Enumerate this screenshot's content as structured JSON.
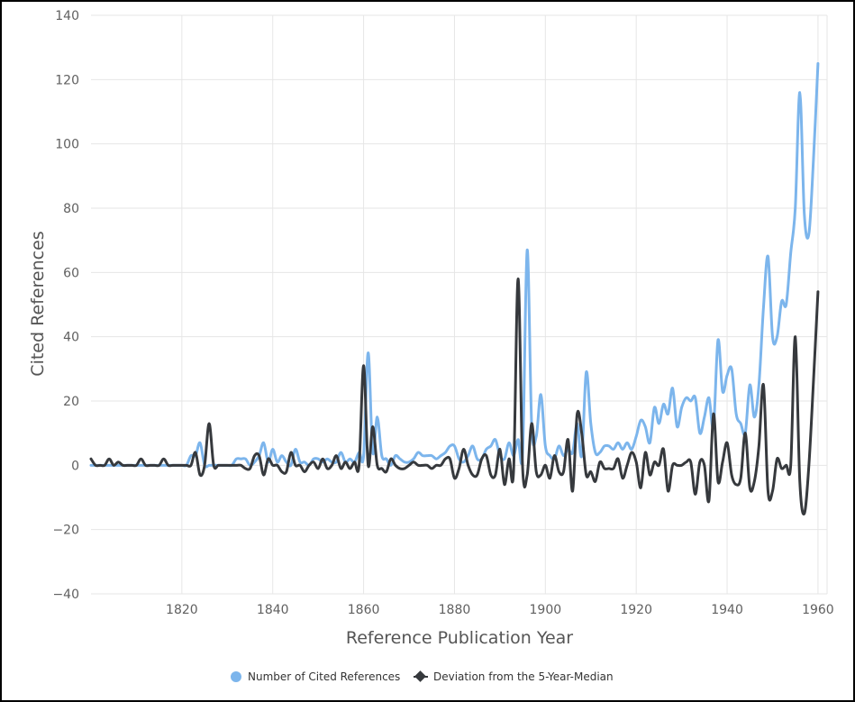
{
  "chart_data": {
    "type": "line",
    "xlabel": "Reference Publication Year",
    "ylabel": "Cited References",
    "xlim": [
      1800,
      1962
    ],
    "ylim": [
      -40,
      140
    ],
    "x_ticks": [
      1820,
      1840,
      1860,
      1880,
      1900,
      1920,
      1940,
      1960
    ],
    "y_ticks": [
      -40,
      -20,
      0,
      20,
      40,
      60,
      80,
      100,
      120,
      140
    ],
    "grid": true,
    "legend_position": "bottom-center",
    "colors": {
      "series_1": "#7cb5ec",
      "series_2": "#36393d",
      "grid": "#e6e6e6"
    },
    "series": [
      {
        "name": "Number of Cited References",
        "marker": "circle",
        "points": [
          [
            1800,
            0
          ],
          [
            1801,
            0
          ],
          [
            1802,
            0
          ],
          [
            1803,
            0
          ],
          [
            1804,
            0
          ],
          [
            1805,
            0
          ],
          [
            1806,
            0
          ],
          [
            1807,
            0
          ],
          [
            1808,
            0
          ],
          [
            1809,
            0
          ],
          [
            1810,
            0
          ],
          [
            1811,
            0
          ],
          [
            1812,
            0
          ],
          [
            1813,
            0
          ],
          [
            1814,
            0
          ],
          [
            1815,
            0
          ],
          [
            1816,
            0
          ],
          [
            1817,
            0
          ],
          [
            1818,
            0
          ],
          [
            1819,
            0
          ],
          [
            1820,
            0
          ],
          [
            1821,
            0
          ],
          [
            1822,
            3
          ],
          [
            1823,
            3
          ],
          [
            1824,
            7
          ],
          [
            1825,
            0
          ],
          [
            1826,
            0
          ],
          [
            1827,
            0
          ],
          [
            1828,
            0
          ],
          [
            1829,
            0
          ],
          [
            1830,
            0
          ],
          [
            1831,
            0
          ],
          [
            1832,
            2
          ],
          [
            1833,
            2
          ],
          [
            1834,
            2
          ],
          [
            1835,
            0
          ],
          [
            1836,
            1
          ],
          [
            1837,
            3
          ],
          [
            1838,
            7
          ],
          [
            1839,
            1
          ],
          [
            1840,
            5
          ],
          [
            1841,
            1
          ],
          [
            1842,
            3
          ],
          [
            1843,
            1
          ],
          [
            1844,
            0
          ],
          [
            1845,
            5
          ],
          [
            1846,
            1
          ],
          [
            1847,
            1
          ],
          [
            1848,
            0
          ],
          [
            1849,
            2
          ],
          [
            1850,
            2
          ],
          [
            1851,
            1
          ],
          [
            1852,
            2
          ],
          [
            1853,
            1
          ],
          [
            1854,
            1
          ],
          [
            1855,
            4
          ],
          [
            1856,
            1
          ],
          [
            1857,
            2
          ],
          [
            1858,
            1
          ],
          [
            1859,
            4
          ],
          [
            1860,
            3
          ],
          [
            1861,
            35
          ],
          [
            1862,
            4
          ],
          [
            1863,
            15
          ],
          [
            1864,
            3
          ],
          [
            1865,
            2
          ],
          [
            1866,
            0
          ],
          [
            1867,
            3
          ],
          [
            1868,
            2
          ],
          [
            1869,
            1
          ],
          [
            1870,
            1
          ],
          [
            1871,
            2
          ],
          [
            1872,
            4
          ],
          [
            1873,
            3
          ],
          [
            1874,
            3
          ],
          [
            1875,
            3
          ],
          [
            1876,
            2
          ],
          [
            1877,
            3
          ],
          [
            1878,
            4
          ],
          [
            1879,
            6
          ],
          [
            1880,
            6
          ],
          [
            1881,
            2
          ],
          [
            1882,
            1
          ],
          [
            1883,
            3
          ],
          [
            1884,
            6
          ],
          [
            1885,
            2
          ],
          [
            1886,
            2
          ],
          [
            1887,
            5
          ],
          [
            1888,
            6
          ],
          [
            1889,
            8
          ],
          [
            1890,
            3
          ],
          [
            1891,
            2
          ],
          [
            1892,
            7
          ],
          [
            1893,
            3
          ],
          [
            1894,
            8
          ],
          [
            1895,
            4
          ],
          [
            1896,
            67
          ],
          [
            1897,
            12
          ],
          [
            1898,
            9
          ],
          [
            1899,
            22
          ],
          [
            1900,
            6
          ],
          [
            1901,
            3
          ],
          [
            1902,
            2
          ],
          [
            1903,
            6
          ],
          [
            1904,
            3
          ],
          [
            1905,
            5
          ],
          [
            1906,
            4
          ],
          [
            1907,
            13
          ],
          [
            1908,
            3
          ],
          [
            1909,
            29
          ],
          [
            1910,
            13
          ],
          [
            1911,
            4
          ],
          [
            1912,
            4
          ],
          [
            1913,
            6
          ],
          [
            1914,
            6
          ],
          [
            1915,
            5
          ],
          [
            1916,
            7
          ],
          [
            1917,
            5
          ],
          [
            1918,
            7
          ],
          [
            1919,
            5
          ],
          [
            1920,
            9
          ],
          [
            1921,
            14
          ],
          [
            1922,
            12
          ],
          [
            1923,
            7
          ],
          [
            1924,
            18
          ],
          [
            1925,
            13
          ],
          [
            1926,
            19
          ],
          [
            1927,
            16
          ],
          [
            1928,
            24
          ],
          [
            1929,
            12
          ],
          [
            1930,
            18
          ],
          [
            1931,
            21
          ],
          [
            1932,
            20
          ],
          [
            1933,
            21
          ],
          [
            1934,
            10
          ],
          [
            1935,
            15
          ],
          [
            1936,
            21
          ],
          [
            1937,
            12
          ],
          [
            1938,
            39
          ],
          [
            1939,
            23
          ],
          [
            1940,
            28
          ],
          [
            1941,
            30
          ],
          [
            1942,
            16
          ],
          [
            1943,
            13
          ],
          [
            1944,
            10
          ],
          [
            1945,
            25
          ],
          [
            1946,
            15
          ],
          [
            1947,
            25
          ],
          [
            1948,
            49
          ],
          [
            1949,
            65
          ],
          [
            1950,
            40
          ],
          [
            1951,
            40
          ],
          [
            1952,
            51
          ],
          [
            1953,
            50
          ],
          [
            1954,
            66
          ],
          [
            1955,
            80
          ],
          [
            1956,
            116
          ],
          [
            1957,
            78
          ],
          [
            1958,
            72
          ],
          [
            1959,
            95
          ],
          [
            1960,
            125
          ]
        ]
      },
      {
        "name": "Deviation from the 5-Year-Median",
        "marker": "diamond",
        "points": [
          [
            1800,
            2
          ],
          [
            1801,
            0
          ],
          [
            1802,
            0
          ],
          [
            1803,
            0
          ],
          [
            1804,
            2
          ],
          [
            1805,
            0
          ],
          [
            1806,
            1
          ],
          [
            1807,
            0
          ],
          [
            1808,
            0
          ],
          [
            1809,
            0
          ],
          [
            1810,
            0
          ],
          [
            1811,
            2
          ],
          [
            1812,
            0
          ],
          [
            1813,
            0
          ],
          [
            1814,
            0
          ],
          [
            1815,
            0
          ],
          [
            1816,
            2
          ],
          [
            1817,
            0
          ],
          [
            1818,
            0
          ],
          [
            1819,
            0
          ],
          [
            1820,
            0
          ],
          [
            1821,
            0
          ],
          [
            1822,
            0
          ],
          [
            1823,
            4
          ],
          [
            1824,
            -3
          ],
          [
            1825,
            0
          ],
          [
            1826,
            13
          ],
          [
            1827,
            0
          ],
          [
            1828,
            0
          ],
          [
            1829,
            0
          ],
          [
            1830,
            0
          ],
          [
            1831,
            0
          ],
          [
            1832,
            0
          ],
          [
            1833,
            0
          ],
          [
            1834,
            -1
          ],
          [
            1835,
            -1
          ],
          [
            1836,
            3
          ],
          [
            1837,
            3
          ],
          [
            1838,
            -3
          ],
          [
            1839,
            2
          ],
          [
            1840,
            0
          ],
          [
            1841,
            0
          ],
          [
            1842,
            -2
          ],
          [
            1843,
            -2
          ],
          [
            1844,
            4
          ],
          [
            1845,
            0
          ],
          [
            1846,
            0
          ],
          [
            1847,
            -2
          ],
          [
            1848,
            0
          ],
          [
            1849,
            1
          ],
          [
            1850,
            -1
          ],
          [
            1851,
            2
          ],
          [
            1852,
            -1
          ],
          [
            1853,
            0
          ],
          [
            1854,
            3
          ],
          [
            1855,
            -1
          ],
          [
            1856,
            1
          ],
          [
            1857,
            -1
          ],
          [
            1858,
            1
          ],
          [
            1859,
            0
          ],
          [
            1860,
            31
          ],
          [
            1861,
            0
          ],
          [
            1862,
            12
          ],
          [
            1863,
            0
          ],
          [
            1864,
            -1
          ],
          [
            1865,
            -2
          ],
          [
            1866,
            2
          ],
          [
            1867,
            0
          ],
          [
            1868,
            -1
          ],
          [
            1869,
            -1
          ],
          [
            1870,
            0
          ],
          [
            1871,
            1
          ],
          [
            1872,
            0
          ],
          [
            1873,
            0
          ],
          [
            1874,
            0
          ],
          [
            1875,
            -1
          ],
          [
            1876,
            0
          ],
          [
            1877,
            0
          ],
          [
            1878,
            2
          ],
          [
            1879,
            2
          ],
          [
            1880,
            -4
          ],
          [
            1881,
            -1
          ],
          [
            1882,
            5
          ],
          [
            1883,
            0
          ],
          [
            1884,
            -3
          ],
          [
            1885,
            -3
          ],
          [
            1886,
            2
          ],
          [
            1887,
            3
          ],
          [
            1888,
            -3
          ],
          [
            1889,
            -3
          ],
          [
            1890,
            5
          ],
          [
            1891,
            -6
          ],
          [
            1892,
            2
          ],
          [
            1893,
            -2
          ],
          [
            1894,
            58
          ],
          [
            1895,
            -1
          ],
          [
            1896,
            -3
          ],
          [
            1897,
            13
          ],
          [
            1898,
            -2
          ],
          [
            1899,
            -3
          ],
          [
            1900,
            0
          ],
          [
            1901,
            -4
          ],
          [
            1902,
            3
          ],
          [
            1903,
            -2
          ],
          [
            1904,
            -2
          ],
          [
            1905,
            8
          ],
          [
            1906,
            -8
          ],
          [
            1907,
            16
          ],
          [
            1908,
            10
          ],
          [
            1909,
            -3
          ],
          [
            1910,
            -2
          ],
          [
            1911,
            -5
          ],
          [
            1912,
            1
          ],
          [
            1913,
            -1
          ],
          [
            1914,
            -1
          ],
          [
            1915,
            -1
          ],
          [
            1916,
            2
          ],
          [
            1917,
            -4
          ],
          [
            1918,
            0
          ],
          [
            1919,
            4
          ],
          [
            1920,
            1
          ],
          [
            1921,
            -7
          ],
          [
            1922,
            4
          ],
          [
            1923,
            -3
          ],
          [
            1924,
            1
          ],
          [
            1925,
            0
          ],
          [
            1926,
            5
          ],
          [
            1927,
            -8
          ],
          [
            1928,
            0
          ],
          [
            1929,
            0
          ],
          [
            1930,
            0
          ],
          [
            1931,
            1
          ],
          [
            1932,
            1
          ],
          [
            1933,
            -9
          ],
          [
            1934,
            1
          ],
          [
            1935,
            0
          ],
          [
            1936,
            -11
          ],
          [
            1937,
            16
          ],
          [
            1938,
            -5
          ],
          [
            1939,
            1
          ],
          [
            1940,
            7
          ],
          [
            1941,
            -3
          ],
          [
            1942,
            -6
          ],
          [
            1943,
            -4
          ],
          [
            1944,
            10
          ],
          [
            1945,
            -7
          ],
          [
            1946,
            -5
          ],
          [
            1947,
            6
          ],
          [
            1948,
            25
          ],
          [
            1949,
            -8
          ],
          [
            1950,
            -8
          ],
          [
            1951,
            2
          ],
          [
            1952,
            -1
          ],
          [
            1953,
            0
          ],
          [
            1954,
            0
          ],
          [
            1955,
            40
          ],
          [
            1956,
            -5
          ],
          [
            1957,
            -15
          ],
          [
            1958,
            0
          ],
          [
            1959,
            26
          ],
          [
            1960,
            54
          ]
        ]
      }
    ]
  }
}
